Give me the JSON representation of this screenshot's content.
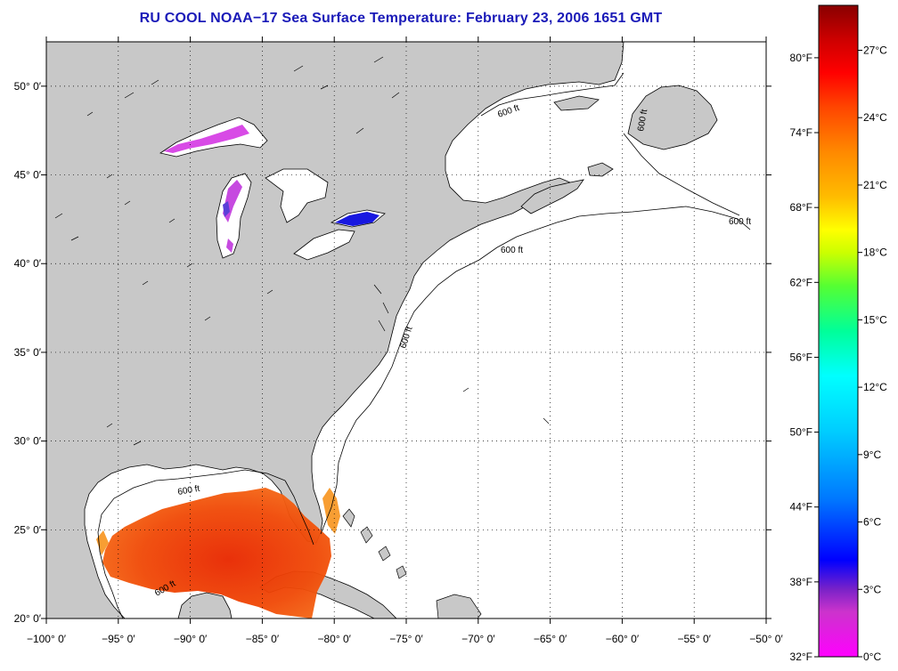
{
  "title": "RU COOL  NOAA−17  Sea Surface Temperature:  February 23, 2006 1651 GMT",
  "map": {
    "projection": "lat-lon",
    "lon_range": [
      -100,
      -50
    ],
    "lat_range": [
      20,
      52.5
    ],
    "lon_ticks": [
      {
        "value": -100,
        "label": "−100° 0′"
      },
      {
        "value": -95,
        "label": "−95° 0′"
      },
      {
        "value": -90,
        "label": "−90° 0′"
      },
      {
        "value": -85,
        "label": "−85° 0′"
      },
      {
        "value": -80,
        "label": "−80° 0′"
      },
      {
        "value": -75,
        "label": "−75° 0′"
      },
      {
        "value": -70,
        "label": "−70° 0′"
      },
      {
        "value": -65,
        "label": "−65° 0′"
      },
      {
        "value": -60,
        "label": "−60° 0′"
      },
      {
        "value": -55,
        "label": "−55° 0′"
      },
      {
        "value": -50,
        "label": "−50° 0′"
      }
    ],
    "lat_ticks": [
      {
        "value": 20,
        "label": "20° 0′"
      },
      {
        "value": 25,
        "label": "25° 0′"
      },
      {
        "value": 30,
        "label": "30° 0′"
      },
      {
        "value": 35,
        "label": "35° 0′"
      },
      {
        "value": 40,
        "label": "40° 0′"
      },
      {
        "value": 45,
        "label": "45° 0′"
      },
      {
        "value": 50,
        "label": "50° 0′"
      }
    ],
    "grid": "dotted",
    "colors": {
      "land": "#c8c8c8",
      "ocean_no_data": "#ffffff",
      "coastline": "#000000"
    },
    "isobath_label": "600 ft"
  },
  "colorbar": {
    "range_celsius": [
      0,
      29
    ],
    "fahrenheit_ticks": [
      {
        "value": 32,
        "label": "32°F"
      },
      {
        "value": 38,
        "label": "38°F"
      },
      {
        "value": 44,
        "label": "44°F"
      },
      {
        "value": 50,
        "label": "50°F"
      },
      {
        "value": 56,
        "label": "56°F"
      },
      {
        "value": 62,
        "label": "62°F"
      },
      {
        "value": 68,
        "label": "68°F"
      },
      {
        "value": 74,
        "label": "74°F"
      },
      {
        "value": 80,
        "label": "80°F"
      }
    ],
    "celsius_ticks": [
      {
        "value": 0,
        "label": "0°C"
      },
      {
        "value": 3,
        "label": "3°C"
      },
      {
        "value": 6,
        "label": "6°C"
      },
      {
        "value": 9,
        "label": "9°C"
      },
      {
        "value": 12,
        "label": "12°C"
      },
      {
        "value": 15,
        "label": "15°C"
      },
      {
        "value": 18,
        "label": "18°C"
      },
      {
        "value": 21,
        "label": "21°C"
      },
      {
        "value": 24,
        "label": "24°C"
      },
      {
        "value": 27,
        "label": "27°C"
      }
    ],
    "gradient_colors": [
      "#ff00ff",
      "#cc33cc",
      "#7a22c8",
      "#0000ff",
      "#0077ff",
      "#00ccff",
      "#00ffff",
      "#00ff99",
      "#55ff33",
      "#ccff00",
      "#ffff00",
      "#ffbb00",
      "#ff8800",
      "#ff4400",
      "#ff0000",
      "#cc0000",
      "#880000"
    ],
    "gradient_stops_celsius": [
      0,
      2,
      3,
      4.3,
      7,
      10,
      12.5,
      14.5,
      16.5,
      18,
      19,
      20.5,
      22.5,
      24.5,
      26,
      27.5,
      29
    ]
  }
}
